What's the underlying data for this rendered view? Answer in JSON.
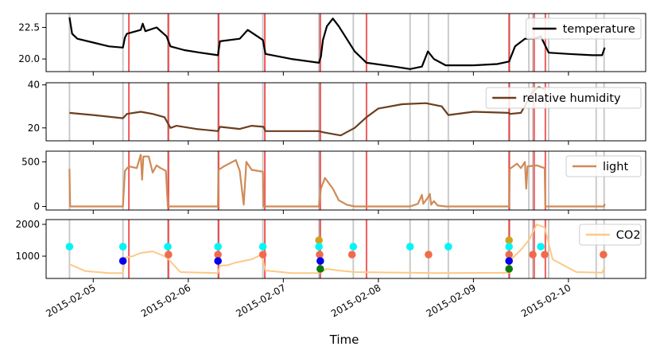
{
  "chart_data": {
    "type": "line",
    "xlabel": "Time",
    "x_ticks": [
      "2015-02-05",
      "2015-02-06",
      "2015-02-07",
      "2015-02-08",
      "2015-02-09",
      "2015-02-10"
    ],
    "x_range": [
      "2015-02-04T12:06",
      "2015-02-10T19:30"
    ],
    "vertical_markers": {
      "gray": [
        "2015-02-04T18:00",
        "2015-02-05T07:30",
        "2015-02-05T18:50",
        "2015-02-06T07:30",
        "2015-02-06T18:50",
        "2015-02-07T09:00",
        "2015-02-07T09:12",
        "2015-02-07T17:40",
        "2015-02-08T08:00",
        "2015-02-08T12:40",
        "2015-02-08T17:40",
        "2015-02-09T09:10",
        "2015-02-09T14:00",
        "2015-02-09T15:00",
        "2015-02-09T19:00",
        "2015-02-10T07:00",
        "2015-02-10T09:00"
      ],
      "red": [
        "2015-02-05T09:00",
        "2015-02-05T19:00",
        "2015-02-06T07:40",
        "2015-02-06T19:20",
        "2015-02-07T09:20",
        "2015-02-07T21:00",
        "2015-02-09T09:00",
        "2015-02-09T15:20",
        "2015-02-09T18:10"
      ]
    },
    "panels": [
      {
        "series_name": "temperature",
        "color": "#000000",
        "legend_position": "top-right",
        "yticks": [
          20.0,
          22.5
        ],
        "ylim": [
          19.0,
          23.6
        ],
        "points": [
          [
            "2015-02-04T18:00",
            23.3
          ],
          [
            "2015-02-04T18:40",
            22.0
          ],
          [
            "2015-02-04T20:00",
            21.6
          ],
          [
            "2015-02-05T00:00",
            21.3
          ],
          [
            "2015-02-05T04:00",
            21.0
          ],
          [
            "2015-02-05T07:30",
            20.9
          ],
          [
            "2015-02-05T08:00",
            21.7
          ],
          [
            "2015-02-05T08:30",
            22.0
          ],
          [
            "2015-02-05T12:00",
            22.3
          ],
          [
            "2015-02-05T12:30",
            22.8
          ],
          [
            "2015-02-05T13:10",
            22.2
          ],
          [
            "2015-02-05T16:00",
            22.5
          ],
          [
            "2015-02-05T18:30",
            21.8
          ],
          [
            "2015-02-05T19:30",
            21.0
          ],
          [
            "2015-02-05T23:00",
            20.7
          ],
          [
            "2015-02-06T03:00",
            20.5
          ],
          [
            "2015-02-06T07:30",
            20.3
          ],
          [
            "2015-02-06T08:00",
            21.4
          ],
          [
            "2015-02-06T13:00",
            21.6
          ],
          [
            "2015-02-06T15:00",
            22.3
          ],
          [
            "2015-02-06T18:50",
            21.5
          ],
          [
            "2015-02-06T19:30",
            20.4
          ],
          [
            "2015-02-07T02:00",
            20.0
          ],
          [
            "2015-02-07T09:00",
            19.7
          ],
          [
            "2015-02-07T09:30",
            20.2
          ],
          [
            "2015-02-07T10:00",
            21.5
          ],
          [
            "2015-02-07T11:00",
            22.6
          ],
          [
            "2015-02-07T12:30",
            23.2
          ],
          [
            "2015-02-07T14:00",
            22.6
          ],
          [
            "2015-02-07T18:00",
            20.6
          ],
          [
            "2015-02-07T21:00",
            19.7
          ],
          [
            "2015-02-08T04:00",
            19.4
          ],
          [
            "2015-02-08T08:00",
            19.2
          ],
          [
            "2015-02-08T11:00",
            19.4
          ],
          [
            "2015-02-08T12:30",
            20.6
          ],
          [
            "2015-02-08T14:00",
            20.0
          ],
          [
            "2015-02-08T17:00",
            19.5
          ],
          [
            "2015-02-09T00:00",
            19.5
          ],
          [
            "2015-02-09T06:00",
            19.6
          ],
          [
            "2015-02-09T09:00",
            19.8
          ],
          [
            "2015-02-09T10:30",
            21.0
          ],
          [
            "2015-02-09T13:00",
            21.6
          ],
          [
            "2015-02-09T15:20",
            21.6
          ],
          [
            "2015-02-09T17:00",
            21.8
          ],
          [
            "2015-02-09T19:00",
            20.5
          ],
          [
            "2015-02-10T00:00",
            20.4
          ],
          [
            "2015-02-10T06:00",
            20.3
          ],
          [
            "2015-02-10T08:30",
            20.3
          ],
          [
            "2015-02-10T09:10",
            20.9
          ]
        ]
      },
      {
        "series_name": "relative humidity",
        "color": "#6b3e20",
        "legend_position": "top-right",
        "yticks": [
          20,
          40
        ],
        "ylim": [
          14,
          41
        ],
        "points": [
          [
            "2015-02-04T18:00",
            27.0
          ],
          [
            "2015-02-05T00:00",
            26.0
          ],
          [
            "2015-02-05T07:30",
            24.5
          ],
          [
            "2015-02-05T08:30",
            26.5
          ],
          [
            "2015-02-05T12:00",
            27.5
          ],
          [
            "2015-02-05T15:00",
            26.5
          ],
          [
            "2015-02-05T18:00",
            25.0
          ],
          [
            "2015-02-05T19:30",
            20.0
          ],
          [
            "2015-02-05T21:00",
            21.0
          ],
          [
            "2015-02-06T02:00",
            19.5
          ],
          [
            "2015-02-06T07:30",
            18.5
          ],
          [
            "2015-02-06T08:00",
            20.5
          ],
          [
            "2015-02-06T13:00",
            19.5
          ],
          [
            "2015-02-06T16:00",
            21.0
          ],
          [
            "2015-02-06T19:00",
            20.5
          ],
          [
            "2015-02-06T19:30",
            18.5
          ],
          [
            "2015-02-07T09:00",
            18.5
          ],
          [
            "2015-02-07T10:00",
            18.0
          ],
          [
            "2015-02-07T13:00",
            17.0
          ],
          [
            "2015-02-07T14:30",
            16.5
          ],
          [
            "2015-02-07T18:00",
            20.0
          ],
          [
            "2015-02-07T21:00",
            25.0
          ],
          [
            "2015-02-08T00:00",
            29.0
          ],
          [
            "2015-02-08T06:00",
            31.0
          ],
          [
            "2015-02-08T12:00",
            31.5
          ],
          [
            "2015-02-08T16:00",
            30.0
          ],
          [
            "2015-02-08T17:40",
            26.0
          ],
          [
            "2015-02-09T00:00",
            27.5
          ],
          [
            "2015-02-09T09:00",
            27.0
          ],
          [
            "2015-02-09T09:10",
            26.5
          ],
          [
            "2015-02-09T12:00",
            27.0
          ],
          [
            "2015-02-09T15:00",
            37.0
          ],
          [
            "2015-02-09T16:30",
            39.0
          ],
          [
            "2015-02-09T18:00",
            38.0
          ]
        ]
      },
      {
        "series_name": "light",
        "color": "#d08a56",
        "legend_position": "top-right",
        "yticks": [
          0,
          500
        ],
        "ylim": [
          -40,
          620
        ],
        "points": [
          [
            "2015-02-04T18:00",
            420
          ],
          [
            "2015-02-04T18:10",
            0
          ],
          [
            "2015-02-05T07:30",
            0
          ],
          [
            "2015-02-05T08:00",
            400
          ],
          [
            "2015-02-05T09:00",
            450
          ],
          [
            "2015-02-05T11:00",
            430
          ],
          [
            "2015-02-05T12:00",
            580
          ],
          [
            "2015-02-05T12:20",
            300
          ],
          [
            "2015-02-05T12:40",
            560
          ],
          [
            "2015-02-05T14:00",
            560
          ],
          [
            "2015-02-05T15:00",
            380
          ],
          [
            "2015-02-05T16:00",
            460
          ],
          [
            "2015-02-05T17:00",
            430
          ],
          [
            "2015-02-05T18:20",
            400
          ],
          [
            "2015-02-05T18:50",
            0
          ],
          [
            "2015-02-06T07:30",
            0
          ],
          [
            "2015-02-06T07:40",
            410
          ],
          [
            "2015-02-06T09:00",
            450
          ],
          [
            "2015-02-06T12:00",
            520
          ],
          [
            "2015-02-06T13:00",
            400
          ],
          [
            "2015-02-06T14:00",
            20
          ],
          [
            "2015-02-06T14:40",
            500
          ],
          [
            "2015-02-06T16:00",
            410
          ],
          [
            "2015-02-06T18:50",
            390
          ],
          [
            "2015-02-06T19:00",
            0
          ],
          [
            "2015-02-07T09:00",
            0
          ],
          [
            "2015-02-07T09:30",
            200
          ],
          [
            "2015-02-07T10:30",
            320
          ],
          [
            "2015-02-07T12:30",
            200
          ],
          [
            "2015-02-07T14:00",
            70
          ],
          [
            "2015-02-07T16:00",
            20
          ],
          [
            "2015-02-07T18:00",
            0
          ],
          [
            "2015-02-08T08:00",
            0
          ],
          [
            "2015-02-08T10:00",
            30
          ],
          [
            "2015-02-08T11:00",
            130
          ],
          [
            "2015-02-08T11:20",
            30
          ],
          [
            "2015-02-08T12:30",
            100
          ],
          [
            "2015-02-08T13:00",
            140
          ],
          [
            "2015-02-08T13:20",
            20
          ],
          [
            "2015-02-08T14:00",
            60
          ],
          [
            "2015-02-08T15:00",
            10
          ],
          [
            "2015-02-08T17:00",
            0
          ],
          [
            "2015-02-09T09:00",
            0
          ],
          [
            "2015-02-09T09:10",
            420
          ],
          [
            "2015-02-09T11:00",
            480
          ],
          [
            "2015-02-09T12:00",
            430
          ],
          [
            "2015-02-09T13:00",
            500
          ],
          [
            "2015-02-09T13:20",
            200
          ],
          [
            "2015-02-09T13:40",
            450
          ],
          [
            "2015-02-09T16:00",
            460
          ],
          [
            "2015-02-09T18:00",
            430
          ],
          [
            "2015-02-09T18:10",
            0
          ],
          [
            "2015-02-10T09:00",
            0
          ],
          [
            "2015-02-10T09:10",
            30
          ]
        ]
      },
      {
        "series_name": "CO2",
        "color": "#fdc886",
        "legend_position": "top-right",
        "yticks": [
          1000,
          2000
        ],
        "ylim": [
          300,
          2150
        ],
        "points": [
          [
            "2015-02-04T18:00",
            750
          ],
          [
            "2015-02-04T22:00",
            530
          ],
          [
            "2015-02-05T04:00",
            470
          ],
          [
            "2015-02-05T07:30",
            470
          ],
          [
            "2015-02-05T08:00",
            950
          ],
          [
            "2015-02-05T10:00",
            1000
          ],
          [
            "2015-02-05T12:00",
            1100
          ],
          [
            "2015-02-05T15:00",
            1150
          ],
          [
            "2015-02-05T18:00",
            1000
          ],
          [
            "2015-02-05T19:00",
            900
          ],
          [
            "2015-02-05T22:00",
            500
          ],
          [
            "2015-02-06T07:30",
            470
          ],
          [
            "2015-02-06T08:00",
            700
          ],
          [
            "2015-02-06T10:00",
            720
          ],
          [
            "2015-02-06T12:00",
            800
          ],
          [
            "2015-02-06T16:00",
            900
          ],
          [
            "2015-02-06T18:30",
            1050
          ],
          [
            "2015-02-06T19:30",
            550
          ],
          [
            "2015-02-07T02:00",
            470
          ],
          [
            "2015-02-07T09:00",
            470
          ],
          [
            "2015-02-07T11:00",
            600
          ],
          [
            "2015-02-07T14:00",
            550
          ],
          [
            "2015-02-07T18:00",
            500
          ],
          [
            "2015-02-08T08:00",
            480
          ],
          [
            "2015-02-08T14:00",
            470
          ],
          [
            "2015-02-09T09:00",
            480
          ],
          [
            "2015-02-09T09:30",
            900
          ],
          [
            "2015-02-09T12:00",
            1200
          ],
          [
            "2015-02-09T14:00",
            1500
          ],
          [
            "2015-02-09T16:00",
            2000
          ],
          [
            "2015-02-09T18:00",
            1900
          ],
          [
            "2015-02-09T20:00",
            900
          ],
          [
            "2015-02-10T02:00",
            500
          ],
          [
            "2015-02-10T08:30",
            480
          ],
          [
            "2015-02-10T09:10",
            650
          ]
        ],
        "events": [
          {
            "time": "2015-02-04T18:00",
            "value": 1300,
            "color": "#00f5f5"
          },
          {
            "time": "2015-02-05T07:30",
            "value": 1300,
            "color": "#00f5f5"
          },
          {
            "time": "2015-02-05T07:30",
            "value": 850,
            "color": "#0000ee"
          },
          {
            "time": "2015-02-05T18:50",
            "value": 1300,
            "color": "#00f5f5"
          },
          {
            "time": "2015-02-05T19:00",
            "value": 1050,
            "color": "#f26a4b"
          },
          {
            "time": "2015-02-06T07:30",
            "value": 1300,
            "color": "#00f5f5"
          },
          {
            "time": "2015-02-06T07:30",
            "value": 1050,
            "color": "#f26a4b"
          },
          {
            "time": "2015-02-06T07:30",
            "value": 850,
            "color": "#0000ee"
          },
          {
            "time": "2015-02-06T18:50",
            "value": 1300,
            "color": "#00f5f5"
          },
          {
            "time": "2015-02-06T18:50",
            "value": 1050,
            "color": "#f26a4b"
          },
          {
            "time": "2015-02-07T09:00",
            "value": 1500,
            "color": "#d4a017"
          },
          {
            "time": "2015-02-07T09:00",
            "value": 1300,
            "color": "#00f5f5"
          },
          {
            "time": "2015-02-07T09:10",
            "value": 1050,
            "color": "#f26a4b"
          },
          {
            "time": "2015-02-07T09:20",
            "value": 850,
            "color": "#0000ee"
          },
          {
            "time": "2015-02-07T09:20",
            "value": 600,
            "color": "#0a7a0a"
          },
          {
            "time": "2015-02-07T17:20",
            "value": 1050,
            "color": "#f26a4b"
          },
          {
            "time": "2015-02-07T17:40",
            "value": 1300,
            "color": "#00f5f5"
          },
          {
            "time": "2015-02-08T08:00",
            "value": 1300,
            "color": "#00f5f5"
          },
          {
            "time": "2015-02-08T12:40",
            "value": 1050,
            "color": "#f26a4b"
          },
          {
            "time": "2015-02-08T17:40",
            "value": 1300,
            "color": "#00f5f5"
          },
          {
            "time": "2015-02-09T09:00",
            "value": 1500,
            "color": "#d4a017"
          },
          {
            "time": "2015-02-09T09:00",
            "value": 1300,
            "color": "#00f5f5"
          },
          {
            "time": "2015-02-09T09:00",
            "value": 1050,
            "color": "#f26a4b"
          },
          {
            "time": "2015-02-09T09:00",
            "value": 850,
            "color": "#0000ee"
          },
          {
            "time": "2015-02-09T09:00",
            "value": 600,
            "color": "#0a7a0a"
          },
          {
            "time": "2015-02-09T15:00",
            "value": 1050,
            "color": "#f26a4b"
          },
          {
            "time": "2015-02-09T17:00",
            "value": 1300,
            "color": "#00f5f5"
          },
          {
            "time": "2015-02-09T18:00",
            "value": 1050,
            "color": "#f26a4b"
          },
          {
            "time": "2015-02-10T08:50",
            "value": 1050,
            "color": "#f26a4b"
          }
        ]
      }
    ]
  }
}
